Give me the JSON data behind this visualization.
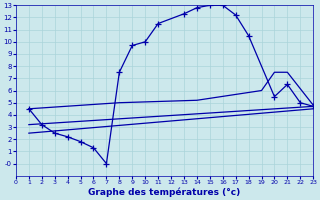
{
  "xlabel": "Graphe des températures (°c)",
  "bg_color": "#cce8ec",
  "grid_color": "#aad4da",
  "line_color": "#0000aa",
  "xlim": [
    0,
    23
  ],
  "ylim": [
    -1,
    13
  ],
  "xtick_labels": [
    "0",
    "1",
    "2",
    "3",
    "4",
    "5",
    "6",
    "7",
    "8",
    "9",
    "10",
    "11",
    "12",
    "13",
    "14",
    "15",
    "16",
    "17",
    "18",
    "19",
    "20",
    "21",
    "22",
    "23"
  ],
  "xticks": [
    0,
    1,
    2,
    3,
    4,
    5,
    6,
    7,
    8,
    9,
    10,
    11,
    12,
    13,
    14,
    15,
    16,
    17,
    18,
    19,
    20,
    21,
    22,
    23
  ],
  "yticks": [
    0,
    1,
    2,
    3,
    4,
    5,
    6,
    7,
    8,
    9,
    10,
    11,
    12,
    13
  ],
  "ytick_labels": [
    "-0",
    "1",
    "2",
    "3",
    "4",
    "5",
    "6",
    "7",
    "8",
    "9",
    "10",
    "11",
    "12",
    "13"
  ],
  "lines": [
    {
      "x": [
        1,
        2,
        3,
        4,
        5,
        6,
        7,
        8,
        9,
        10,
        11,
        13,
        14,
        15,
        16,
        17,
        18,
        20,
        21,
        22,
        23
      ],
      "y": [
        4.5,
        3.2,
        2.5,
        2.2,
        1.8,
        1.3,
        0.0,
        7.5,
        9.7,
        10.0,
        11.5,
        12.3,
        12.8,
        13.0,
        13.0,
        12.2,
        10.5,
        5.5,
        6.5,
        5.0,
        4.7
      ],
      "marker": true
    },
    {
      "x": [
        1,
        8,
        14,
        19,
        20,
        21,
        23
      ],
      "y": [
        4.5,
        5.0,
        5.2,
        6.0,
        7.5,
        7.5,
        4.8
      ],
      "marker": false
    },
    {
      "x": [
        1,
        23
      ],
      "y": [
        3.2,
        4.7
      ],
      "marker": false
    },
    {
      "x": [
        1,
        23
      ],
      "y": [
        2.5,
        4.5
      ],
      "marker": false
    }
  ]
}
